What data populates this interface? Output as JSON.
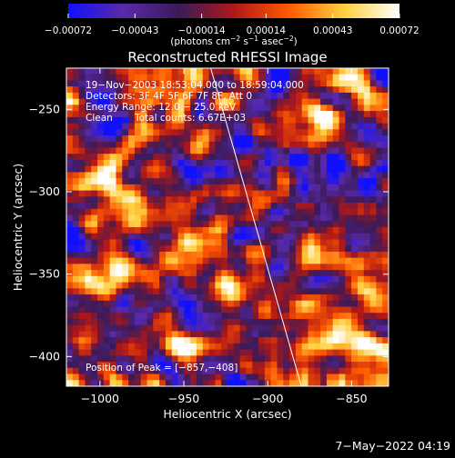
{
  "chart_data": {
    "type": "heatmap",
    "title": "Reconstructed RHESSI Image",
    "xlabel": "Heliocentric X (arcsec)",
    "ylabel": "Heliocentric Y (arcsec)",
    "xlim": [
      -1020,
      -828
    ],
    "ylim": [
      -418,
      -225
    ],
    "xticks": [
      -1000,
      -950,
      -900,
      -850
    ],
    "yticks": [
      -250,
      -300,
      -350,
      -400
    ],
    "xtick_labels": [
      "−1000",
      "−950",
      "−900",
      "−850"
    ],
    "ytick_labels": [
      "−250",
      "−300",
      "−350",
      "−400"
    ],
    "colorbar": {
      "range": [
        -0.00072,
        0.00072
      ],
      "ticks": [
        -0.00072,
        -0.00043,
        -0.00014,
        0.00014,
        0.00043,
        0.00072
      ],
      "tick_labels": [
        "−0.00072",
        "−0.00043",
        "−0.00014",
        "0.00014",
        "0.00043",
        "0.00072"
      ],
      "units_text": "(photons cm",
      "units_sup1": "−2",
      "units_mid": " s",
      "units_sup2": "−1",
      "units_end": " asec",
      "units_sup3": "−2",
      "units_close": ")",
      "colors": [
        "#1010ff",
        "#5a2aa8",
        "#3a1a5a",
        "#b01818",
        "#ff5a00",
        "#ffd040",
        "#ffffff"
      ]
    },
    "annotations": {
      "time_range": "19−Nov−2003 18:53:04.000 to 18:59:04.000",
      "detectors": "Detectors: 3F 4F 5F 6F 7F 8F, Att 0",
      "energy": "Energy Range: 12.0 − 25.0 keV",
      "clean": "Clean",
      "counts": "Total counts: 6.67E+03",
      "peak": "Position of Peak = [−857,−408]"
    },
    "limb_line": {
      "x": [
        -934,
        -880
      ],
      "y": [
        -225,
        -418
      ]
    },
    "image_grid": {
      "nx": 52,
      "ny": 52,
      "seed": 7
    }
  },
  "footer": {
    "timestamp": "7−May−2022 04:19"
  }
}
